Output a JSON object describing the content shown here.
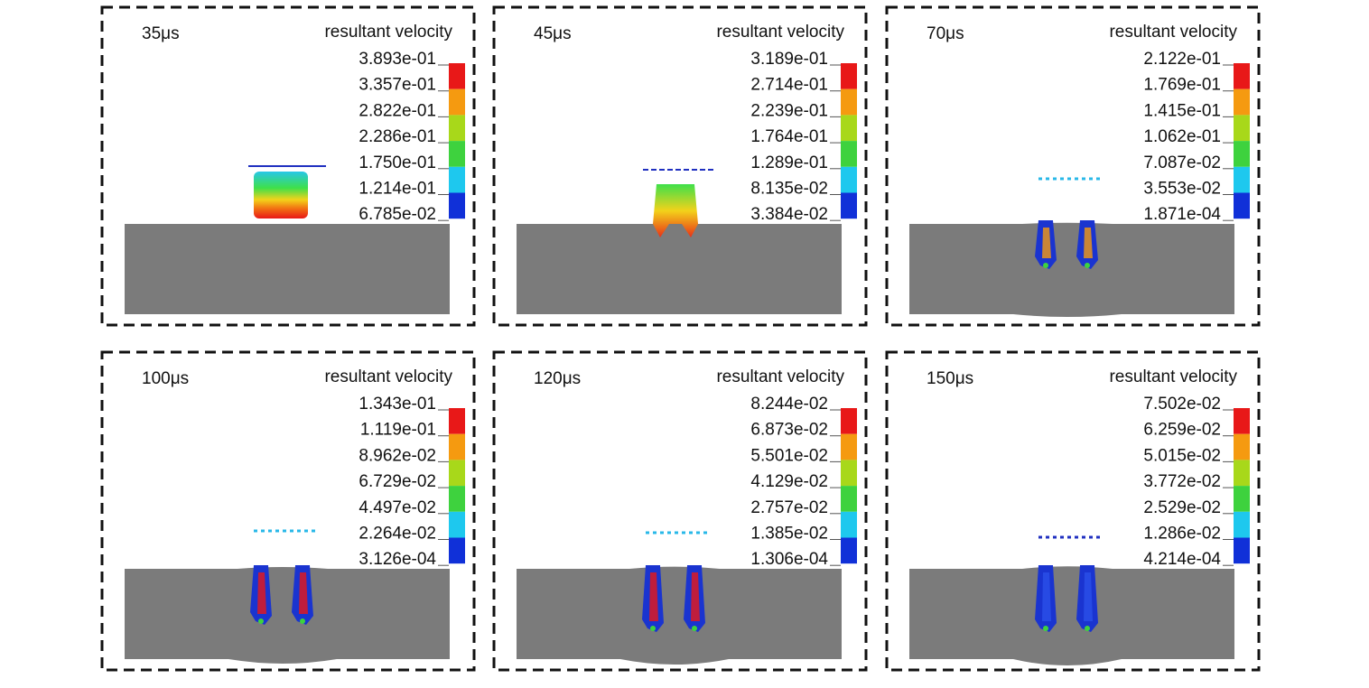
{
  "panels": [
    {
      "time": "35μs",
      "legend_title": "resultant velocity",
      "legend_values": [
        "3.893e-01",
        "3.357e-01",
        "2.822e-01",
        "2.286e-01",
        "1.750e-01",
        "1.214e-01",
        "6.785e-02"
      ]
    },
    {
      "time": "45μs",
      "legend_title": "resultant velocity",
      "legend_values": [
        "3.189e-01",
        "2.714e-01",
        "2.239e-01",
        "1.764e-01",
        "1.289e-01",
        "8.135e-02",
        "3.384e-02"
      ]
    },
    {
      "time": "70μs",
      "legend_title": "resultant velocity",
      "legend_values": [
        "2.122e-01",
        "1.769e-01",
        "1.415e-01",
        "1.062e-01",
        "7.087e-02",
        "3.553e-02",
        "1.871e-04"
      ]
    },
    {
      "time": "100μs",
      "legend_title": "resultant velocity",
      "legend_values": [
        "1.343e-01",
        "1.119e-01",
        "8.962e-02",
        "6.729e-02",
        "4.497e-02",
        "2.264e-02",
        "3.126e-04"
      ]
    },
    {
      "time": "120μs",
      "legend_title": "resultant velocity",
      "legend_values": [
        "8.244e-02",
        "6.873e-02",
        "5.501e-02",
        "4.129e-02",
        "2.757e-02",
        "1.385e-02",
        "1.306e-04"
      ]
    },
    {
      "time": "150μs",
      "legend_title": "resultant velocity",
      "legend_values": [
        "7.502e-02",
        "6.259e-02",
        "5.015e-02",
        "3.772e-02",
        "2.529e-02",
        "1.286e-02",
        "4.214e-04"
      ]
    }
  ]
}
